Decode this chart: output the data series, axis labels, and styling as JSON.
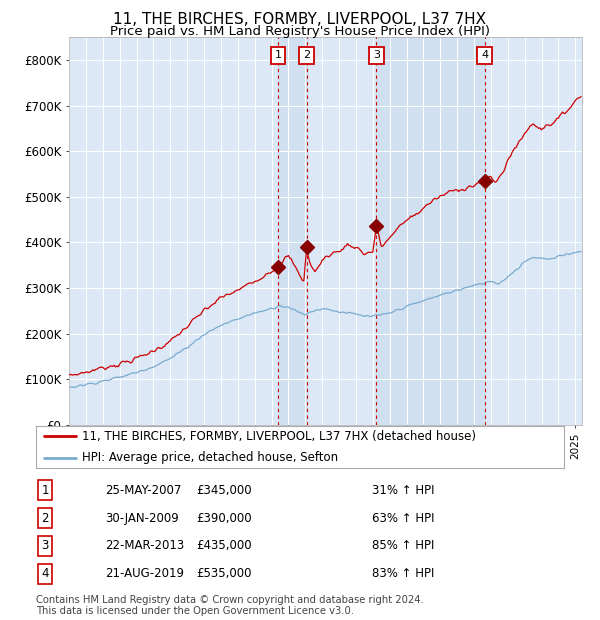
{
  "title": "11, THE BIRCHES, FORMBY, LIVERPOOL, L37 7HX",
  "subtitle": "Price paid vs. HM Land Registry's House Price Index (HPI)",
  "ylim": [
    0,
    850000
  ],
  "yticks": [
    0,
    100000,
    200000,
    300000,
    400000,
    500000,
    600000,
    700000,
    800000
  ],
  "ytick_labels": [
    "£0",
    "£100K",
    "£200K",
    "£300K",
    "£400K",
    "£500K",
    "£600K",
    "£700K",
    "£800K"
  ],
  "xlim_start": 1995.0,
  "xlim_end": 2025.4,
  "background_color": "#ffffff",
  "plot_bg_color": "#dce8f5",
  "grid_color": "#ffffff",
  "red_line_color": "#cc0000",
  "blue_line_color": "#7aabcf",
  "sale_marker_color": "#880000",
  "dashed_line_color": "#cc0000",
  "title_fontsize": 11,
  "subtitle_fontsize": 9.5,
  "transactions": [
    {
      "num": 1,
      "date": 2007.39,
      "price": 345000,
      "label": "25-MAY-2007",
      "pct": "31% ↑ HPI"
    },
    {
      "num": 2,
      "date": 2009.08,
      "price": 390000,
      "label": "30-JAN-2009",
      "pct": "63% ↑ HPI"
    },
    {
      "num": 3,
      "date": 2013.22,
      "price": 435000,
      "label": "22-MAR-2013",
      "pct": "85% ↑ HPI"
    },
    {
      "num": 4,
      "date": 2019.64,
      "price": 535000,
      "label": "21-AUG-2019",
      "pct": "83% ↑ HPI"
    }
  ],
  "legend_label_red": "11, THE BIRCHES, FORMBY, LIVERPOOL, L37 7HX (detached house)",
  "legend_label_blue": "HPI: Average price, detached house, Sefton",
  "footer1": "Contains HM Land Registry data © Crown copyright and database right 2024.",
  "footer2": "This data is licensed under the Open Government Licence v3.0.",
  "table_rows": [
    [
      "1",
      "25-MAY-2007",
      "£345,000",
      "31% ↑ HPI"
    ],
    [
      "2",
      "30-JAN-2009",
      "£390,000",
      "63% ↑ HPI"
    ],
    [
      "3",
      "22-MAR-2013",
      "£435,000",
      "85% ↑ HPI"
    ],
    [
      "4",
      "21-AUG-2019",
      "£535,000",
      "83% ↑ HPI"
    ]
  ]
}
